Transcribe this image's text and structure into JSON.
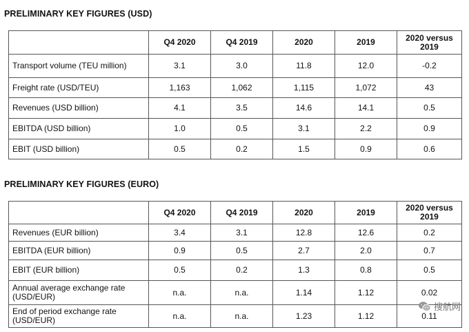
{
  "usd": {
    "title": "PRELIMINARY KEY FIGURES (USD)",
    "headers": [
      "",
      "Q4 2020",
      "Q4 2019",
      "2020",
      "2019",
      "2020 versus 2019"
    ],
    "rows": [
      {
        "label": "Transport volume (TEU million)",
        "values": [
          "3.1",
          "3.0",
          "11.8",
          "12.0",
          "-0.2"
        ]
      },
      {
        "label": "Freight rate (USD/TEU)",
        "values": [
          "1,163",
          "1,062",
          "1,115",
          "1,072",
          "43"
        ]
      },
      {
        "label": "Revenues (USD billion)",
        "values": [
          "4.1",
          "3.5",
          "14.6",
          "14.1",
          "0.5"
        ]
      },
      {
        "label": "EBITDA (USD billion)",
        "values": [
          "1.0",
          "0.5",
          "3.1",
          "2.2",
          "0.9"
        ]
      },
      {
        "label": "EBIT (USD billion)",
        "values": [
          "0.5",
          "0.2",
          "1.5",
          "0.9",
          "0.6"
        ]
      }
    ]
  },
  "euro": {
    "title": "PRELIMINARY KEY FIGURES (EURO)",
    "headers": [
      "",
      "Q4 2020",
      "Q4 2019",
      "2020",
      "2019",
      "2020 versus 2019"
    ],
    "rows": [
      {
        "label": "Revenues (EUR billion)",
        "values": [
          "3.4",
          "3.1",
          "12.8",
          "12.6",
          "0.2"
        ]
      },
      {
        "label": "EBITDA (EUR billion)",
        "values": [
          "0.9",
          "0.5",
          "2.7",
          "2.0",
          "0.7"
        ]
      },
      {
        "label": "EBIT (EUR billion)",
        "values": [
          "0.5",
          "0.2",
          "1.3",
          "0.8",
          "0.5"
        ]
      },
      {
        "label": "Annual average exchange rate (USD/EUR)",
        "values": [
          "n.a.",
          "n.a.",
          "1.14",
          "1.12",
          "0.02"
        ]
      },
      {
        "label": "End of period exchange rate (USD/EUR)",
        "values": [
          "n.a.",
          "n.a.",
          "1.23",
          "1.12",
          "0.11"
        ]
      }
    ]
  },
  "watermark": {
    "text": "搜航网",
    "icon": "wechat-icon"
  }
}
